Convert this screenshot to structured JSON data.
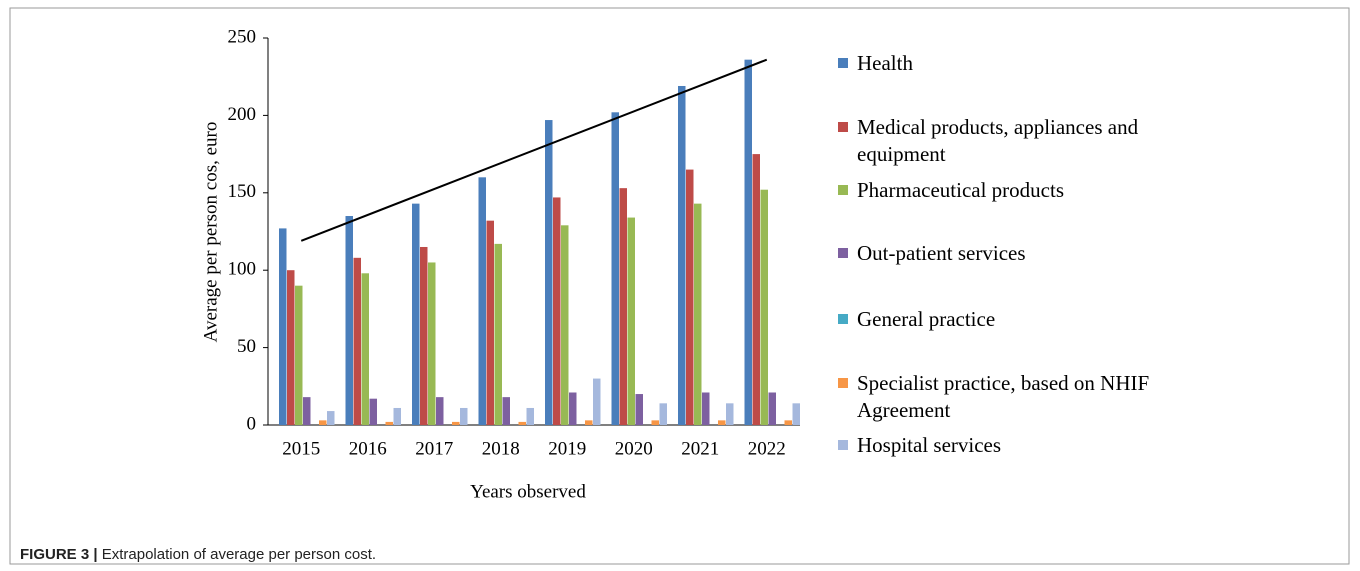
{
  "chart_data": {
    "type": "bar",
    "ylabel": "Average per person cos, euro",
    "xlabel": "Years observed",
    "categories": [
      "2015",
      "2016",
      "2017",
      "2018",
      "2019",
      "2020",
      "2021",
      "2022"
    ],
    "ylim": [
      0,
      250
    ],
    "yticks": [
      0,
      50,
      100,
      150,
      200,
      250
    ],
    "series": [
      {
        "name": "Health",
        "color": "#4a7ebb",
        "values": [
          127,
          135,
          143,
          160,
          197,
          202,
          219,
          236
        ]
      },
      {
        "name": "Medical products, appliances and equipment",
        "color": "#be4b48",
        "values": [
          100,
          108,
          115,
          132,
          147,
          153,
          165,
          175
        ]
      },
      {
        "name": "Pharmaceutical products",
        "color": "#98b954",
        "values": [
          90,
          98,
          105,
          117,
          129,
          134,
          143,
          152
        ]
      },
      {
        "name": "Out-patient services",
        "color": "#7d60a0",
        "values": [
          18,
          17,
          18,
          18,
          21,
          20,
          21,
          21
        ]
      },
      {
        "name": "General practice",
        "color": "#46aac5",
        "values": [
          0,
          0,
          0,
          0,
          0,
          0,
          0,
          0
        ]
      },
      {
        "name": "Specialist practice, based on NHIF Agreement",
        "color": "#f79646",
        "values": [
          3,
          2,
          2,
          2,
          3,
          3,
          3,
          3
        ]
      },
      {
        "name": "Hospital services",
        "color": "#a5b8dd",
        "values": [
          9,
          11,
          11,
          11,
          30,
          14,
          14,
          14
        ]
      }
    ],
    "trend_line": {
      "values": [
        119,
        236
      ]
    },
    "legend": "right"
  },
  "caption": {
    "label": "FIGURE 3 |",
    "text": "Extrapolation of average per person cost."
  }
}
